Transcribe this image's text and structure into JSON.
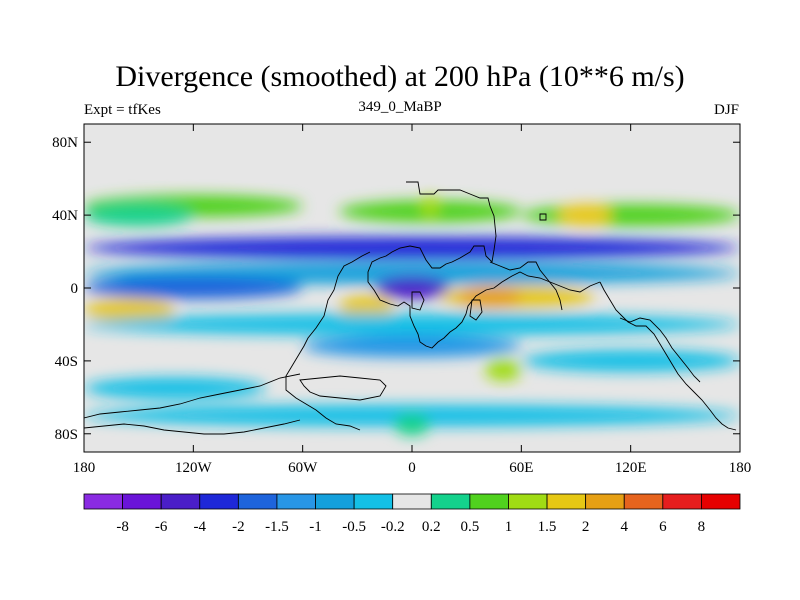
{
  "title": "Divergence (smoothed) at 200 hPa (10**6 m/s)",
  "left_subtitle": "Expt = tfKes",
  "center_subtitle": "349_0_MaBP",
  "right_subtitle": "DJF",
  "chart_data": {
    "type": "heatmap",
    "projection": "cylindrical equidistant",
    "x_range": [
      -180,
      180
    ],
    "y_range": [
      -90,
      90
    ],
    "x_ticks": [
      {
        "value": -180,
        "label": "180"
      },
      {
        "value": -120,
        "label": "120W"
      },
      {
        "value": -60,
        "label": "60W"
      },
      {
        "value": 0,
        "label": "0"
      },
      {
        "value": 60,
        "label": "60E"
      },
      {
        "value": 120,
        "label": "120E"
      },
      {
        "value": 180,
        "label": "180"
      }
    ],
    "y_ticks": [
      {
        "value": 80,
        "label": "80N"
      },
      {
        "value": 40,
        "label": "40N"
      },
      {
        "value": 0,
        "label": "0"
      },
      {
        "value": -40,
        "label": "40S"
      },
      {
        "value": -80,
        "label": "80S"
      }
    ],
    "contour_levels": [
      "-8",
      "-6",
      "-4",
      "-2",
      "-1.5",
      "-1",
      "-0.5",
      "-0.2",
      "0.2",
      "0.5",
      "1",
      "1.5",
      "2",
      "4",
      "6",
      "8"
    ],
    "colors": [
      "#8a2be2",
      "#6a14d8",
      "#4a1ec8",
      "#1e28d8",
      "#1e64dc",
      "#2896e6",
      "#14a0dc",
      "#14c0e6",
      "#e6e6e6",
      "#14d28c",
      "#50d21e",
      "#a0dc14",
      "#e6c814",
      "#e6a014",
      "#e6641e",
      "#e61e1e",
      "#e60000"
    ],
    "background_color": "#e6e6e6",
    "bands": [
      {
        "lat": 72,
        "lon": [
          -180,
          180
        ],
        "color_index": 8
      },
      {
        "lat": 45,
        "lon": [
          -180,
          -60
        ],
        "color_index": 10
      },
      {
        "lat": 40,
        "lon": [
          -180,
          -120
        ],
        "color_index": 9
      },
      {
        "lat": 42,
        "lon": [
          -40,
          60
        ],
        "color_index": 10
      },
      {
        "lat": 45,
        "lon": [
          5,
          15
        ],
        "color_index": 11
      },
      {
        "lat": 40,
        "lon": [
          60,
          180
        ],
        "color_index": 10
      },
      {
        "lat": 40,
        "lon": [
          80,
          110
        ],
        "color_index": 12
      },
      {
        "lat": 22,
        "lon": [
          -180,
          180
        ],
        "color_index": 3
      },
      {
        "lat": 8,
        "lon": [
          -180,
          180
        ],
        "color_index": 6
      },
      {
        "lat": 0,
        "lon": [
          -180,
          -60
        ],
        "color_index": 4
      },
      {
        "lat": 0,
        "lon": [
          -20,
          20
        ],
        "color_index": 2
      },
      {
        "lat": -12,
        "lon": [
          -180,
          -130
        ],
        "color_index": 12
      },
      {
        "lat": -10,
        "lon": [
          -40,
          -10
        ],
        "color_index": 12
      },
      {
        "lat": -5,
        "lon": [
          15,
          100
        ],
        "color_index": 12
      },
      {
        "lat": -5,
        "lon": [
          25,
          60
        ],
        "color_index": 13
      },
      {
        "lat": -20,
        "lon": [
          -35,
          -20
        ],
        "color_index": 14
      },
      {
        "lat": -20,
        "lon": [
          -180,
          180
        ],
        "color_index": 7
      },
      {
        "lat": -32,
        "lon": [
          -60,
          60
        ],
        "color_index": 5
      },
      {
        "lat": -40,
        "lon": [
          60,
          180
        ],
        "color_index": 7
      },
      {
        "lat": -45,
        "lon": [
          40,
          60
        ],
        "color_index": 11
      },
      {
        "lat": -55,
        "lon": [
          -180,
          -80
        ],
        "color_index": 7
      },
      {
        "lat": -70,
        "lon": [
          -180,
          180
        ],
        "color_index": 7
      },
      {
        "lat": -75,
        "lon": [
          -10,
          10
        ],
        "color_index": 9
      }
    ]
  }
}
